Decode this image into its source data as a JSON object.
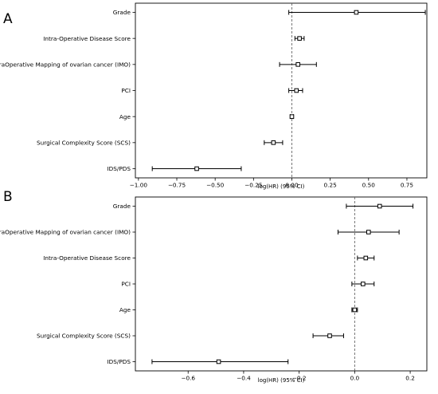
{
  "chart_data": [
    {
      "panel": "A",
      "type": "scatter",
      "subtype": "forest-plot",
      "xlabel": "log(HR) (95% CI)",
      "xlim": [
        -1.02,
        0.88
      ],
      "xticks": [
        -1.0,
        -0.75,
        -0.5,
        -0.25,
        0.0,
        0.25,
        0.5,
        0.75
      ],
      "xtick_labels": [
        "−1.00",
        "−0.75",
        "−0.50",
        "−0.25",
        "0.00",
        "0.25",
        "0.50",
        "0.75"
      ],
      "reference_line_x": 0.0,
      "categories": [
        "Grade",
        "Intra-Operative Disease Score",
        "IntraOperative Mapping of ovarian cancer (IMO)",
        "PCI",
        "Age",
        "Surgical Complexity Score (SCS)",
        "IDS/PDS"
      ],
      "series": [
        {
          "estimate": [
            0.42,
            0.05,
            0.04,
            0.03,
            0.0,
            -0.12,
            -0.62
          ],
          "ci_low": [
            -0.02,
            0.02,
            -0.08,
            -0.02,
            -0.01,
            -0.18,
            -0.91
          ],
          "ci_high": [
            0.87,
            0.08,
            0.16,
            0.07,
            0.01,
            -0.06,
            -0.33
          ]
        }
      ],
      "grid": false
    },
    {
      "panel": "B",
      "type": "scatter",
      "subtype": "forest-plot",
      "xlabel": "log(HR) (95% CI)",
      "xlim": [
        -0.79,
        0.26
      ],
      "xticks": [
        -0.6,
        -0.4,
        -0.2,
        0.0,
        0.2
      ],
      "xtick_labels": [
        "−0.6",
        "−0.4",
        "−0.2",
        "0.0",
        "0.2"
      ],
      "reference_line_x": 0.0,
      "categories": [
        "Grade",
        "IntraOperative Mapping of ovarian cancer (IMO)",
        "Intra-Operative Disease Score",
        "PCI",
        "Age",
        "Surgical Complexity Score (SCS)",
        "IDS/PDS"
      ],
      "series": [
        {
          "estimate": [
            0.09,
            0.05,
            0.04,
            0.03,
            0.0,
            -0.09,
            -0.49
          ],
          "ci_low": [
            -0.03,
            -0.06,
            0.01,
            -0.01,
            -0.01,
            -0.15,
            -0.73
          ],
          "ci_high": [
            0.21,
            0.16,
            0.07,
            0.07,
            0.01,
            -0.04,
            -0.24
          ]
        }
      ],
      "grid": false
    }
  ]
}
